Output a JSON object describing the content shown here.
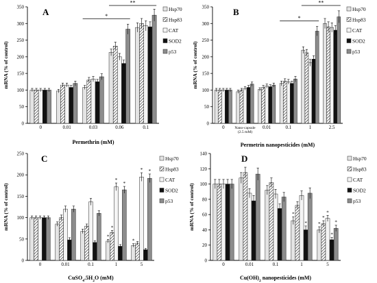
{
  "chart_data": [
    {
      "type": "bar",
      "title": "",
      "panel_label": "A",
      "xlabel": "Permethrin (mM)",
      "ylabel": "mRNA (% of control)",
      "categories": [
        "0",
        "0.01",
        "0.03",
        "0.06",
        "0.1"
      ],
      "ylim": [
        0,
        350
      ],
      "yticks": [
        0,
        50,
        100,
        150,
        200,
        250,
        300,
        350
      ],
      "legend": "right",
      "series": [
        {
          "name": "Hsp70",
          "values": [
            100,
            97,
            108,
            213,
            288
          ]
        },
        {
          "name": "Hsp83",
          "values": [
            100,
            115,
            130,
            232,
            300
          ]
        },
        {
          "name": "CAT",
          "values": [
            100,
            115,
            133,
            200,
            293
          ]
        },
        {
          "name": "SOD2",
          "values": [
            100,
            108,
            125,
            180,
            290
          ]
        },
        {
          "name": "p53",
          "values": [
            100,
            120,
            140,
            283,
            325
          ]
        }
      ],
      "errors": [
        [
          5,
          5,
          6,
          10,
          14
        ],
        [
          5,
          6,
          8,
          12,
          15
        ],
        [
          5,
          6,
          8,
          10,
          15
        ],
        [
          5,
          6,
          7,
          10,
          15
        ],
        [
          5,
          7,
          9,
          15,
          18
        ]
      ],
      "annotations": [
        {
          "text": "*",
          "from": "0.03",
          "to": "0.06"
        },
        {
          "text": "**",
          "from": "0.06",
          "to": "0.1"
        }
      ]
    },
    {
      "type": "bar",
      "title": "",
      "panel_label": "B",
      "xlabel": "Permetrin nanopesticides (mM)",
      "ylabel": "mRNA (% of control)",
      "categories": [
        "0",
        "Nano-capsule (2.5 mM)",
        "0.01",
        "0.1",
        "1",
        "2.5"
      ],
      "category_lines": [
        [
          "0"
        ],
        [
          "Nano-capsule",
          "(2.5 mM)"
        ],
        [
          "0.01"
        ],
        [
          "0.1"
        ],
        [
          "1"
        ],
        [
          "2.5"
        ]
      ],
      "ylim": [
        0,
        350
      ],
      "yticks": [
        0,
        50,
        100,
        150,
        200,
        250,
        300,
        350
      ],
      "legend": "right",
      "series": [
        {
          "name": "Hsp70",
          "values": [
            100,
            95,
            102,
            120,
            220,
            300
          ]
        },
        {
          "name": "Hsp83",
          "values": [
            100,
            100,
            108,
            127,
            212,
            290
          ]
        },
        {
          "name": "CAT",
          "values": [
            100,
            105,
            112,
            125,
            182,
            288
          ]
        },
        {
          "name": "SOD2",
          "values": [
            100,
            108,
            110,
            120,
            193,
            280
          ]
        },
        {
          "name": "p53",
          "values": [
            100,
            118,
            115,
            133,
            277,
            320
          ]
        }
      ],
      "errors": [
        [
          5,
          5,
          5,
          7,
          10,
          15
        ],
        [
          5,
          5,
          6,
          7,
          10,
          15
        ],
        [
          5,
          5,
          6,
          7,
          10,
          14
        ],
        [
          5,
          6,
          6,
          7,
          10,
          14
        ],
        [
          5,
          6,
          6,
          8,
          14,
          18
        ]
      ],
      "annotations": [
        {
          "text": "*",
          "from": "0.1",
          "to": "1"
        },
        {
          "text": "**",
          "from": "1",
          "to": "2.5"
        }
      ]
    },
    {
      "type": "bar",
      "title": "",
      "panel_label": "C",
      "xlabel": "CuSO4.5H2O (mM)",
      "xlabel_parts": [
        [
          "CuSO",
          false
        ],
        [
          "4",
          true
        ],
        [
          ".5H",
          false
        ],
        [
          "2",
          true
        ],
        [
          "O (mM)",
          false
        ]
      ],
      "ylabel": "mRNA (% of control)",
      "categories": [
        "0",
        "0.01",
        "0.1",
        "1",
        "5"
      ],
      "ylim": [
        0,
        250
      ],
      "yticks": [
        0,
        50,
        100,
        150,
        200,
        250
      ],
      "legend": "right",
      "series": [
        {
          "name": "Hsp70",
          "values": [
            100,
            85,
            68,
            45,
            35
          ]
        },
        {
          "name": "Hsp83",
          "values": [
            100,
            100,
            80,
            65,
            40
          ]
        },
        {
          "name": "CAT",
          "values": [
            100,
            120,
            137,
            172,
            195
          ]
        },
        {
          "name": "SOD2",
          "values": [
            100,
            48,
            42,
            33,
            25
          ]
        },
        {
          "name": "p53",
          "values": [
            100,
            120,
            110,
            165,
            192
          ]
        }
      ],
      "errors": [
        [
          4,
          5,
          5,
          4,
          4
        ],
        [
          4,
          6,
          5,
          5,
          4
        ],
        [
          4,
          7,
          8,
          9,
          10
        ],
        [
          4,
          5,
          4,
          4,
          3
        ],
        [
          4,
          7,
          6,
          8,
          10
        ]
      ],
      "stars": [
        {
          "category": "1",
          "series": "Hsp70"
        },
        {
          "category": "1",
          "series": "Hsp83"
        },
        {
          "category": "1",
          "series": "CAT"
        },
        {
          "category": "1",
          "series": "p53"
        },
        {
          "category": "5",
          "series": "Hsp70"
        },
        {
          "category": "5",
          "series": "CAT"
        },
        {
          "category": "5",
          "series": "p53"
        }
      ]
    },
    {
      "type": "bar",
      "title": "",
      "panel_label": "D",
      "xlabel": "Cu(OH)2 nanopesticides (mM)",
      "xlabel_parts": [
        [
          "Cu(OH)",
          false
        ],
        [
          "2",
          true
        ],
        [
          " nanopesticides (mM)",
          false
        ]
      ],
      "ylabel": "mRNA (% of control)",
      "categories": [
        "0",
        "0.01",
        "0.1",
        "1",
        "5"
      ],
      "ylim": [
        0,
        140
      ],
      "yticks": [
        0,
        20,
        40,
        60,
        80,
        100,
        120,
        140
      ],
      "legend": "right",
      "series": [
        {
          "name": "Hsp70",
          "values": [
            100,
            108,
            92,
            52,
            40
          ]
        },
        {
          "name": "Hsp83",
          "values": [
            100,
            115,
            102,
            72,
            48
          ]
        },
        {
          "name": "CAT",
          "values": [
            100,
            88,
            87,
            85,
            55
          ]
        },
        {
          "name": "SOD2",
          "values": [
            100,
            78,
            68,
            40,
            27
          ]
        },
        {
          "name": "p53",
          "values": [
            100,
            113,
            83,
            88,
            42
          ]
        }
      ],
      "errors": [
        [
          6,
          7,
          6,
          5,
          4
        ],
        [
          6,
          7,
          6,
          5,
          4
        ],
        [
          6,
          6,
          6,
          6,
          4
        ],
        [
          6,
          7,
          6,
          5,
          3
        ],
        [
          6,
          8,
          6,
          7,
          4
        ]
      ],
      "stars": [
        {
          "category": "1",
          "series": "Hsp70"
        },
        {
          "category": "1",
          "series": "SOD2"
        },
        {
          "category": "5",
          "series": "Hsp70"
        },
        {
          "category": "5",
          "series": "Hsp83"
        },
        {
          "category": "5",
          "series": "CAT"
        },
        {
          "category": "5",
          "series": "SOD2"
        },
        {
          "category": "5",
          "series": "p53"
        }
      ]
    }
  ],
  "legend_style": [
    {
      "name": "Hsp70",
      "pattern": "light-solid",
      "color": "#e4e4e4"
    },
    {
      "name": "Hsp83",
      "pattern": "diagonal-hatch",
      "color": "#ffffff"
    },
    {
      "name": "CAT",
      "pattern": "white-solid",
      "color": "#f4f4f4"
    },
    {
      "name": "SOD2",
      "pattern": "black-solid",
      "color": "#111111"
    },
    {
      "name": "p53",
      "pattern": "gray-solid",
      "color": "#8c8c8c"
    }
  ]
}
